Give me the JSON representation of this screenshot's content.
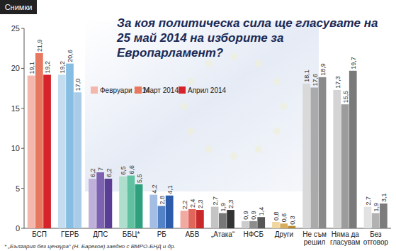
{
  "chart_data": {
    "type": "bar",
    "title": "За коя политическа сила ще гласувате на 25 май 2014 на изборите за Европарламент?",
    "annotations": [
      "Снимки",
      "* „България без цензура“ (Н. Бареков) заедно с ВМРО-БНД и др."
    ],
    "categories": [
      "БСП",
      "ГЕРБ",
      "ДПС",
      "ББЦ*",
      "РБ",
      "АБВ",
      "„Атака“",
      "НФСБ",
      "Други",
      "Не съм решил",
      "Няма да гласувам",
      "Без отговор"
    ],
    "series": [
      {
        "name": "Февруари 2014",
        "colors": [
          "#f3b7ac",
          "#c3dcee",
          "#bfb0da",
          "#aedfcc",
          "#a4bde2",
          "#f0aaa2",
          "#c4c4c4",
          "#cccccc",
          "#f0d6a0",
          "#d9d9d9",
          "#d4d4d4",
          "#e2e2e2"
        ],
        "values": [
          19.1,
          19.2,
          6.2,
          6.5,
          4.2,
          2.2,
          2.7,
          0.9,
          0.8,
          18.1,
          17.3,
          2.7
        ],
        "value_labels": [
          "19,1",
          "19,2",
          "6,2",
          "6,5",
          "4,2",
          "2,2",
          "2,7",
          "0,9",
          "0,8",
          "18,1",
          "17,3",
          "2,7"
        ]
      },
      {
        "name": "Март 2014",
        "colors": [
          "#e8775f",
          "#86bde2",
          "#7c62b0",
          "#5fc1a0",
          "#5383c6",
          "#e0655b",
          "#777777",
          "#8c8c8c",
          "#d8ae5e",
          "#aaaaaa",
          "#9c9c9c",
          "#b2b2b2"
        ],
        "values": [
          21.9,
          20.6,
          7,
          6.6,
          2.8,
          2.4,
          1.9,
          0.9,
          0.6,
          17.6,
          15.5,
          1.9
        ],
        "value_labels": [
          "21,9",
          "20,6",
          "7",
          "6,6",
          "2,8",
          "2,4",
          "1,9",
          "0,9",
          "0,6",
          "17,6",
          "15,5",
          "1,9"
        ]
      },
      {
        "name": "Април 2014",
        "colors": [
          "#d6222a",
          "#a9cde8",
          "#5a3d94",
          "#2fa07d",
          "#2b5ba9",
          "#c8292b",
          "#333333",
          "#565656",
          "#b78a32",
          "#8a8a8a",
          "#7a7a7a",
          "#7c7c7c"
        ],
        "values": [
          19.2,
          17,
          6.2,
          5.5,
          4.1,
          2.3,
          2.3,
          1.4,
          0.3,
          18.9,
          19.7,
          3.1
        ],
        "value_labels": [
          "19,2",
          "17,0",
          "6,2",
          "5,5",
          "4,1",
          "2,3",
          "2,3",
          "1,4",
          "0,3",
          "18,9",
          "19,7",
          "3,1"
        ]
      }
    ],
    "ylim": [
      0,
      25
    ],
    "yticks": [
      0,
      5,
      10,
      15,
      20,
      25
    ],
    "grid": false,
    "legend": "top-left",
    "data_labels": true
  }
}
